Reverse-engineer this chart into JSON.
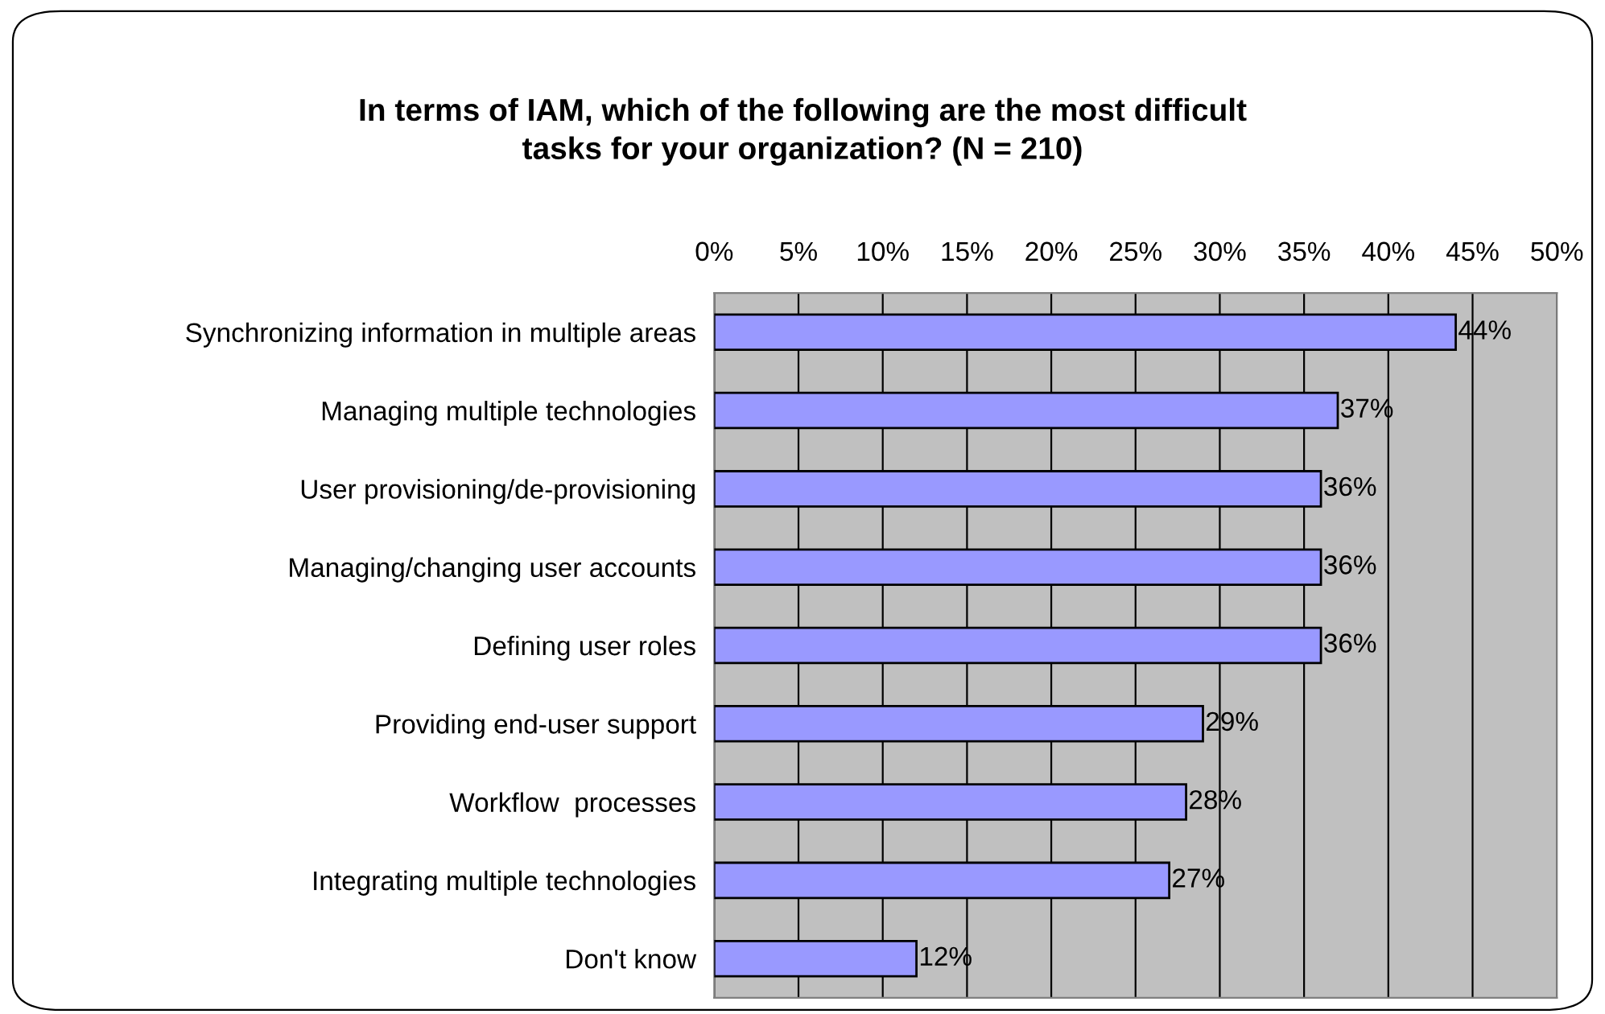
{
  "chart_data": {
    "type": "bar",
    "orientation": "horizontal",
    "title": "In terms of IAM, which of the following are the most difficult\ntasks for your organization? (N = 210)",
    "categories": [
      "Synchronizing information in multiple areas",
      "Managing multiple technologies",
      "User provisioning/de-provisioning",
      "Managing/changing user accounts",
      "Defining user roles",
      "Providing end-user support",
      "Workflow  processes",
      "Integrating multiple technologies",
      "Don't know"
    ],
    "values": [
      44,
      37,
      36,
      36,
      36,
      29,
      28,
      27,
      12
    ],
    "value_labels": [
      "44%",
      "37%",
      "36%",
      "36%",
      "36%",
      "29%",
      "28%",
      "27%",
      "12%"
    ],
    "color": "#9999ff",
    "xlim": [
      0,
      50
    ],
    "xticks": [
      {
        "value": 0,
        "label": "0%"
      },
      {
        "value": 5,
        "label": "5%"
      },
      {
        "value": 10,
        "label": "10%"
      },
      {
        "value": 15,
        "label": "15%"
      },
      {
        "value": 20,
        "label": "20%"
      },
      {
        "value": 25,
        "label": "25%"
      },
      {
        "value": 30,
        "label": "30%"
      },
      {
        "value": 35,
        "label": "35%"
      },
      {
        "value": 40,
        "label": "40%"
      },
      {
        "value": 45,
        "label": "45%"
      },
      {
        "value": 50,
        "label": "50%"
      }
    ],
    "grid": "x"
  }
}
